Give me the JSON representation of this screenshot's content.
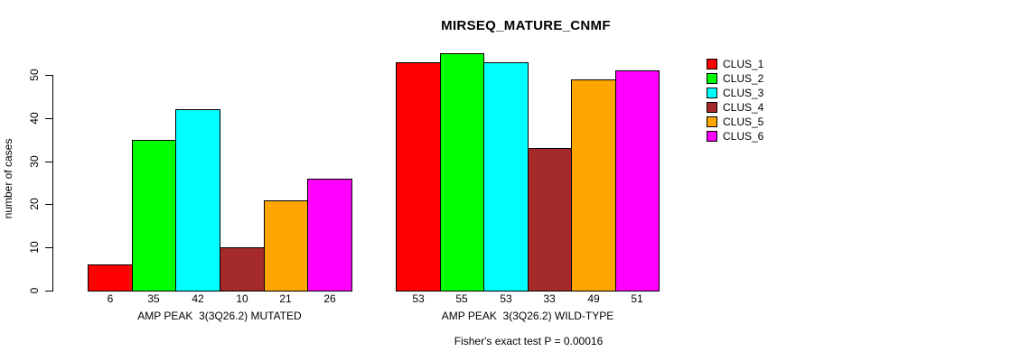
{
  "chart_data": {
    "type": "bar",
    "title": "MIRSEQ_MATURE_CNMF",
    "ylabel": "number of cases",
    "yticks": [
      0,
      10,
      20,
      30,
      40,
      50
    ],
    "ylim": [
      0,
      55
    ],
    "grid": false,
    "legend_position": "right",
    "categories": [
      "AMP PEAK  3(3Q26.2) MUTATED",
      "AMP PEAK  3(3Q26.2) WILD-TYPE"
    ],
    "series": [
      {
        "name": "CLUS_1",
        "color": "#FF0000",
        "values": [
          6,
          53
        ]
      },
      {
        "name": "CLUS_2",
        "color": "#00FF00",
        "values": [
          35,
          55
        ]
      },
      {
        "name": "CLUS_3",
        "color": "#00FFFF",
        "values": [
          42,
          53
        ]
      },
      {
        "name": "CLUS_4",
        "color": "#A52A2A",
        "values": [
          10,
          33
        ]
      },
      {
        "name": "CLUS_5",
        "color": "#FFA500",
        "values": [
          21,
          49
        ]
      },
      {
        "name": "CLUS_6",
        "color": "#FF00FF",
        "values": [
          26,
          51
        ]
      }
    ],
    "bar_value_labels": [
      [
        6,
        35,
        42,
        10,
        21,
        26
      ],
      [
        53,
        55,
        53,
        33,
        49,
        51
      ]
    ],
    "caption": "Fisher's exact test P = 0.00016",
    "axis_color": "#000000",
    "bar_border_color": "#000000"
  }
}
